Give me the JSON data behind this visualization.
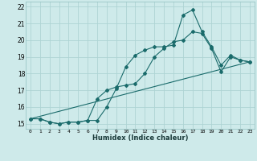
{
  "xlabel": "Humidex (Indice chaleur)",
  "background_color": "#ceeaea",
  "grid_color": "#aed4d4",
  "line_color": "#1a6b6b",
  "xlim": [
    -0.5,
    23.5
  ],
  "ylim": [
    14.7,
    22.3
  ],
  "yticks": [
    15,
    16,
    17,
    18,
    19,
    20,
    21,
    22
  ],
  "xticks": [
    0,
    1,
    2,
    3,
    4,
    5,
    6,
    7,
    8,
    9,
    10,
    11,
    12,
    13,
    14,
    15,
    16,
    17,
    18,
    19,
    20,
    21,
    22,
    23
  ],
  "line1_x": [
    0,
    1,
    2,
    3,
    4,
    5,
    6,
    7,
    8,
    9,
    10,
    11,
    12,
    13,
    14,
    15,
    16,
    17,
    18,
    19,
    20,
    21,
    22,
    23
  ],
  "line1_y": [
    15.3,
    15.3,
    15.1,
    15.0,
    15.1,
    15.1,
    15.2,
    15.2,
    16.0,
    17.1,
    18.4,
    19.1,
    19.4,
    19.6,
    19.6,
    19.7,
    21.5,
    21.8,
    20.5,
    19.6,
    18.5,
    19.1,
    18.8,
    18.7
  ],
  "line2_x": [
    0,
    1,
    2,
    3,
    4,
    5,
    6,
    7,
    8,
    9,
    10,
    11,
    12,
    13,
    14,
    15,
    16,
    17,
    18,
    19,
    20,
    21,
    22,
    23
  ],
  "line2_y": [
    15.3,
    15.3,
    15.1,
    15.0,
    15.1,
    15.1,
    15.2,
    16.5,
    17.0,
    17.2,
    17.3,
    17.4,
    18.0,
    19.0,
    19.5,
    19.9,
    20.0,
    20.5,
    20.4,
    19.5,
    18.1,
    19.0,
    18.8,
    18.7
  ],
  "line3_x": [
    0,
    23
  ],
  "line3_y": [
    15.3,
    18.7
  ]
}
